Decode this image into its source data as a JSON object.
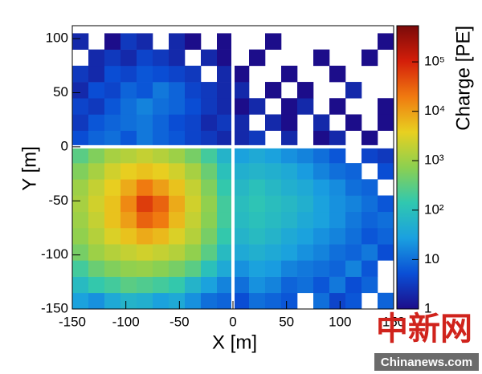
{
  "chart_data": {
    "type": "heatmap",
    "xlabel": "X [m]",
    "ylabel": "Y [m]",
    "colorbar_label": "Charge [PE]",
    "x_bins": [
      -150,
      -135,
      -120,
      -105,
      -90,
      -75,
      -60,
      -45,
      -30,
      -15,
      0,
      15,
      30,
      45,
      60,
      75,
      90,
      105,
      120,
      135,
      150
    ],
    "y_bins": [
      -150,
      -135,
      -120,
      -105,
      -90,
      -75,
      -60,
      -45,
      -30,
      -15,
      0,
      15,
      30,
      45,
      60,
      75,
      90,
      105
    ],
    "z": [
      [
        30,
        20,
        40,
        60,
        50,
        30,
        40,
        20,
        10,
        8,
        5,
        10,
        8,
        6,
        null,
        10,
        4,
        6,
        null,
        8
      ],
      [
        80,
        150,
        200,
        300,
        250,
        200,
        150,
        60,
        30,
        15,
        10,
        20,
        15,
        8,
        10,
        6,
        12,
        5,
        8,
        null
      ],
      [
        200,
        400,
        600,
        800,
        900,
        700,
        500,
        300,
        100,
        40,
        20,
        30,
        25,
        15,
        12,
        10,
        8,
        15,
        6,
        null
      ],
      [
        500,
        1000,
        1500,
        2000,
        2500,
        2000,
        1500,
        800,
        300,
        80,
        40,
        50,
        40,
        30,
        20,
        15,
        10,
        8,
        12,
        5
      ],
      [
        800,
        1500,
        3000,
        5000,
        8000,
        6000,
        3000,
        1500,
        500,
        150,
        60,
        80,
        60,
        40,
        30,
        20,
        15,
        10,
        6,
        8
      ],
      [
        1000,
        2000,
        5000,
        10000,
        30000,
        20000,
        6000,
        2000,
        700,
        200,
        80,
        100,
        80,
        60,
        40,
        30,
        20,
        12,
        8,
        10
      ],
      [
        1200,
        2500,
        5000,
        15000,
        60000,
        30000,
        8000,
        2500,
        800,
        200,
        90,
        120,
        90,
        70,
        50,
        30,
        20,
        15,
        10,
        6
      ],
      [
        1000,
        2000,
        4000,
        8000,
        20000,
        10000,
        5000,
        2000,
        600,
        150,
        70,
        100,
        70,
        50,
        40,
        25,
        18,
        10,
        8,
        null
      ],
      [
        600,
        1200,
        2500,
        4000,
        5000,
        4000,
        2500,
        1200,
        400,
        100,
        50,
        60,
        50,
        40,
        25,
        15,
        10,
        8,
        null,
        5
      ],
      [
        300,
        600,
        1200,
        1500,
        2000,
        1500,
        1000,
        500,
        200,
        60,
        30,
        40,
        30,
        20,
        15,
        10,
        6,
        null,
        4,
        3
      ],
      [
        5,
        8,
        10,
        6,
        12,
        8,
        6,
        4,
        3,
        2,
        2,
        3,
        null,
        2,
        null,
        1,
        2,
        null,
        1,
        null
      ],
      [
        3,
        6,
        8,
        10,
        12,
        8,
        5,
        4,
        2,
        3,
        2,
        null,
        2,
        1,
        null,
        2,
        null,
        1,
        null,
        1
      ],
      [
        4,
        3,
        6,
        10,
        15,
        10,
        8,
        5,
        3,
        2,
        1,
        2,
        null,
        1,
        2,
        null,
        1,
        null,
        null,
        1
      ],
      [
        2,
        5,
        4,
        8,
        6,
        12,
        8,
        4,
        3,
        2,
        2,
        null,
        1,
        null,
        1,
        null,
        null,
        2,
        null,
        null
      ],
      [
        3,
        2,
        5,
        4,
        6,
        5,
        4,
        3,
        null,
        2,
        1,
        null,
        null,
        1,
        null,
        null,
        1,
        null,
        null,
        null
      ],
      [
        null,
        2,
        3,
        2,
        4,
        3,
        2,
        null,
        2,
        1,
        null,
        1,
        null,
        null,
        null,
        1,
        null,
        null,
        1,
        null
      ],
      [
        2,
        null,
        1,
        3,
        2,
        null,
        2,
        1,
        null,
        1,
        null,
        null,
        1,
        null,
        null,
        null,
        null,
        null,
        null,
        1
      ]
    ],
    "xlim": [
      -150,
      150
    ],
    "ylim": [
      -150,
      112
    ],
    "xticks": [
      -150,
      -100,
      -50,
      0,
      50,
      100,
      150
    ],
    "yticks": [
      -150,
      -100,
      -50,
      0,
      50,
      100
    ],
    "zlim": [
      1,
      540000
    ],
    "zlog": true,
    "zticks": [
      1,
      10,
      {
        "value": 100,
        "label": "10²"
      },
      {
        "value": 1000,
        "label": "10³"
      },
      {
        "value": 10000,
        "label": "10⁴"
      },
      {
        "value": 100000,
        "label": "10⁵"
      }
    ],
    "colormap": [
      "#1c0d8a",
      "#0a4fd6",
      "#1aa0e0",
      "#30c8b0",
      "#8cd050",
      "#e8d020",
      "#f07a10",
      "#d41e0a",
      "#7a0a0a"
    ]
  },
  "watermark": {
    "logo": "中新网",
    "site": "Chinanews.com"
  }
}
